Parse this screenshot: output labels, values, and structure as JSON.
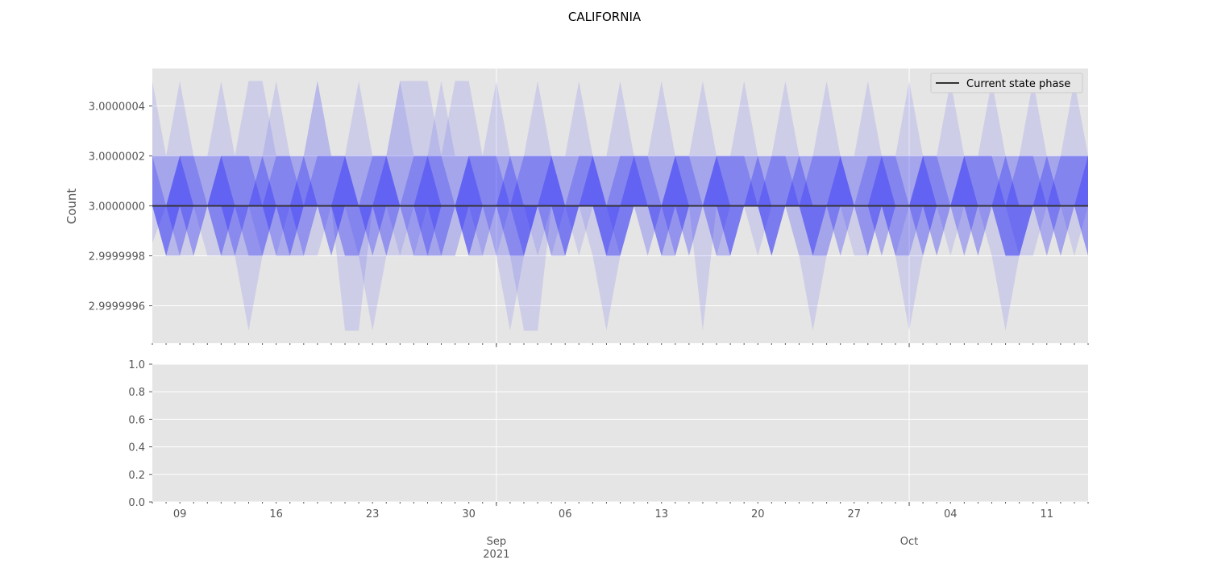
{
  "chart_data": {
    "type": "area",
    "title": "CALIFORNIA",
    "legend": {
      "position": "top-right",
      "entries": [
        "Current state phase"
      ]
    },
    "grid": true,
    "panels": [
      {
        "name": "top",
        "ylabel": "Count",
        "ylim": [
          2.99999945,
          3.00000055
        ],
        "yticks": [
          "2.9999996",
          "2.9999998",
          "3.0000000",
          "3.0000002",
          "3.0000004"
        ],
        "line": {
          "name": "Current state phase",
          "value": 3.0,
          "color": "#333333"
        },
        "bands": [
          {
            "color": "#0000ff",
            "opacity": 0.1,
            "lower": [
              2.99999985,
              3.0,
              2.9999998,
              2.9999998,
              3.0,
              2.9999998,
              2.9999998,
              2.9999998,
              2.9999998,
              3.0,
              3.0,
              2.9999998,
              2.9999998,
              3.0,
              2.9999995,
              2.9999995,
              3.0,
              3.0,
              2.9999998,
              2.9999998,
              3.0,
              2.9999998,
              2.9999998,
              3.0,
              3.0,
              2.9999998,
              2.9999998,
              2.9999995,
              2.9999995,
              3.0,
              2.9999998,
              3.0,
              3.0,
              3.0,
              2.9999998,
              3.0,
              3.0,
              3.0,
              3.0,
              3.0,
              3.0,
              3.0,
              3.0,
              3.0,
              3.0,
              3.0,
              3.0,
              3.0,
              3.0,
              3.0,
              3.0,
              3.0,
              3.0,
              3.0,
              3.0,
              3.0,
              3.0,
              3.0,
              3.0,
              3.0,
              3.0,
              3.0,
              3.0,
              3.0,
              3.0,
              3.0,
              3.0,
              3.0,
              3.0
            ],
            "upper": [
              3.0000005,
              3.0000002,
              3.0000002,
              3.0000002,
              3.0000002,
              3.0000002,
              3.0000002,
              3.0000005,
              3.0000005,
              3.0000002,
              3.0000002,
              3.0000002,
              3.0000005,
              3.0000002,
              3.0000002,
              3.0000002,
              3.0000002,
              3.0000002,
              3.0000005,
              3.0000005,
              3.0000005,
              3.0000002,
              3.0000005,
              3.0000005,
              3.0000002,
              3.0000002,
              3.0000002,
              3.0000002,
              3.0000002,
              3.0000002,
              3.0000002,
              3.0000002,
              3.0000002,
              3.0000002,
              3.0000002,
              3.0000002,
              3.0000002,
              3.0000002,
              3.0000002,
              3.0000002,
              3.0000002,
              3.0000002,
              3.0000002,
              3.0000002,
              3.0000002,
              3.0000002,
              3.0000002,
              3.0000002,
              3.0000002,
              3.0000002,
              3.0000002,
              3.0000002,
              3.0000002,
              3.0000002,
              3.0000002,
              3.0000002,
              3.0000002,
              3.0000002,
              3.0000002,
              3.0000002,
              3.0000002,
              3.0000002,
              3.0000002,
              3.0000002,
              3.0000002,
              3.0000002,
              3.0000002,
              3.0000002,
              3.0000002
            ]
          },
          {
            "color": "#0000ff",
            "opacity": 0.1,
            "lower": [
              3.0,
              2.9999998,
              3.0,
              3.0,
              2.9999998,
              2.9999998,
              3.0,
              3.0,
              2.9999998,
              2.9999998,
              3.0,
              2.9999998,
              3.0,
              3.0,
              2.9999998,
              2.9999998,
              3.0,
              2.9999998,
              2.9999998,
              3.0,
              3.0,
              2.9999998,
              2.9999998,
              3.0,
              2.9999998,
              2.9999998,
              3.0,
              3.0,
              2.9999998,
              3.0,
              3.0,
              2.9999998,
              3.0,
              2.9999998,
              2.9999998,
              3.0,
              3.0,
              2.9999998,
              2.9999998,
              3.0,
              3.0,
              2.9999998,
              3.0,
              3.0,
              2.9999998,
              3.0,
              3.0,
              2.9999998,
              2.9999998,
              3.0,
              3.0,
              2.9999998,
              2.9999998,
              3.0,
              2.9999998,
              3.0,
              3.0,
              2.9999998,
              3.0,
              3.0,
              2.9999998,
              3.0,
              3.0,
              2.9999998,
              2.9999998,
              3.0,
              3.0,
              2.9999998,
              3.0
            ],
            "upper": [
              3.0000002,
              3.0000002,
              3.0000005,
              3.0000002,
              3.0000002,
              3.0000005,
              3.0000002,
              3.0000002,
              3.0000002,
              3.0000005,
              3.0000002,
              3.0000002,
              3.0000005,
              3.0000002,
              3.0000002,
              3.0000005,
              3.0000002,
              3.0000002,
              3.0000005,
              3.0000002,
              3.0000002,
              3.0000005,
              3.0000002,
              3.0000002,
              3.0000002,
              3.0000005,
              3.0000002,
              3.0000002,
              3.0000005,
              3.0000002,
              3.0000002,
              3.0000005,
              3.0000002,
              3.0000002,
              3.0000005,
              3.0000002,
              3.0000002,
              3.0000005,
              3.0000002,
              3.0000002,
              3.0000005,
              3.0000002,
              3.0000002,
              3.0000005,
              3.0000002,
              3.0000002,
              3.0000005,
              3.0000002,
              3.0000002,
              3.0000005,
              3.0000002,
              3.0000002,
              3.0000005,
              3.0000002,
              3.0000002,
              3.0000005,
              3.0000002,
              3.0000002,
              3.0000005,
              3.0000002,
              3.0000002,
              3.0000005,
              3.0000002,
              3.0000002,
              3.0000005,
              3.0000002,
              3.0000002,
              3.0000005,
              3.0000002
            ]
          },
          {
            "color": "#0000ff",
            "opacity": 0.1,
            "lower": [
              3.0,
              3.0,
              2.9999998,
              3.0,
              3.0,
              2.9999998,
              2.9999998,
              2.9999995,
              2.9999998,
              3.0,
              2.9999998,
              3.0,
              3.0,
              2.9999998,
              3.0,
              2.9999998,
              2.9999995,
              2.9999998,
              3.0,
              3.0,
              2.9999998,
              2.9999998,
              3.0,
              2.9999998,
              3.0,
              2.9999998,
              2.9999995,
              2.9999998,
              3.0,
              2.9999998,
              3.0,
              3.0,
              2.9999998,
              2.9999995,
              2.9999998,
              3.0,
              3.0,
              2.9999998,
              2.9999998,
              3.0,
              2.9999995,
              3.0,
              2.9999998,
              3.0,
              3.0,
              2.9999998,
              3.0,
              2.9999998,
              2.9999995,
              2.9999998,
              3.0,
              3.0,
              2.9999998,
              3.0,
              2.9999998,
              2.9999995,
              2.9999998,
              3.0,
              2.9999998,
              3.0,
              3.0,
              2.9999998,
              2.9999995,
              2.9999998,
              3.0,
              3.0,
              2.9999998,
              3.0,
              2.9999998
            ],
            "upper": [
              3.0000002,
              3.0000002,
              3.0000002,
              3.0000002,
              3.0000002,
              3.0000002,
              3.0000002,
              3.0000002,
              3.0000002,
              3.0000002,
              3.0000002,
              3.0000002,
              3.0000002,
              3.0000002,
              3.0000002,
              3.0000002,
              3.0000002,
              3.0000002,
              3.0000002,
              3.0000002,
              3.0000002,
              3.0000002,
              3.0000002,
              3.0000002,
              3.0000002,
              3.0000002,
              3.0000002,
              3.0000002,
              3.0000002,
              3.0000002,
              3.0000002,
              3.0000002,
              3.0000002,
              3.0000002,
              3.0000002,
              3.0000002,
              3.0000002,
              3.0000002,
              3.0000002,
              3.0000002,
              3.0000002,
              3.0000002,
              3.0000002,
              3.0000002,
              3.0000002,
              3.0000002,
              3.0000002,
              3.0000002,
              3.0000002,
              3.0000002,
              3.0000002,
              3.0000002,
              3.0000002,
              3.0000002,
              3.0000002,
              3.0000002,
              3.0000002,
              3.0000002,
              3.0000002,
              3.0000002,
              3.0000002,
              3.0000002,
              3.0000002,
              3.0000002,
              3.0000002,
              3.0000002,
              3.0000002,
              3.0000002,
              3.0000002
            ]
          },
          {
            "color": "#0000ff",
            "opacity": 0.2,
            "lower": [
              3.0,
              2.9999998,
              2.9999998,
              3.0,
              3.0,
              2.9999998,
              3.0,
              2.9999998,
              2.9999998,
              3.0,
              2.9999998,
              2.9999998,
              3.0,
              3.0,
              2.9999998,
              2.9999998,
              3.0,
              2.9999998,
              3.0,
              3.0,
              2.9999998,
              2.9999998,
              3.0,
              2.9999998,
              2.9999998,
              3.0,
              3.0,
              2.9999998,
              3.0,
              2.9999998,
              2.9999998,
              3.0,
              3.0,
              2.9999998,
              3.0,
              3.0,
              2.9999998,
              3.0,
              2.9999998,
              3.0,
              3.0,
              2.9999998,
              2.9999998,
              3.0,
              3.0,
              2.9999998,
              3.0,
              3.0,
              2.9999998,
              2.9999998,
              3.0,
              3.0,
              2.9999998,
              3.0,
              2.9999998,
              2.9999998,
              3.0,
              2.9999998,
              3.0,
              3.0,
              2.9999998,
              3.0,
              2.9999998,
              2.9999998,
              3.0,
              3.0,
              2.9999998,
              3.0,
              3.0
            ],
            "upper": [
              3.0000002,
              3.0,
              3.0000002,
              3.0000002,
              3.0,
              3.0000002,
              3.0000002,
              3.0000002,
              3.0,
              3.0000002,
              3.0000002,
              3.0,
              3.0000002,
              3.0000002,
              3.0000002,
              3.0,
              3.0000002,
              3.0000002,
              3.0,
              3.0000002,
              3.0000002,
              3.0000002,
              3.0,
              3.0000002,
              3.0000002,
              3.0000002,
              3.0,
              3.0000002,
              3.0000002,
              3.0000002,
              3.0,
              3.0000002,
              3.0000002,
              3.0,
              3.0000002,
              3.0000002,
              3.0000002,
              3.0,
              3.0000002,
              3.0000002,
              3.0,
              3.0000002,
              3.0000002,
              3.0000002,
              3.0,
              3.0000002,
              3.0000002,
              3.0,
              3.0000002,
              3.0000002,
              3.0000002,
              3.0,
              3.0000002,
              3.0000002,
              3.0000002,
              3.0,
              3.0000002,
              3.0000002,
              3.0,
              3.0000002,
              3.0000002,
              3.0000002,
              3.0,
              3.0000002,
              3.0000002,
              3.0,
              3.0000002,
              3.0000002,
              3.0000002
            ]
          },
          {
            "color": "#0000ff",
            "opacity": 0.25,
            "lower": [
              3.0,
              2.9999998,
              3.0,
              2.9999998,
              3.0,
              3.0,
              2.9999998,
              3.0,
              3.0,
              2.9999998,
              2.9999998,
              3.0,
              3.0,
              2.9999998,
              3.0,
              3.0,
              2.9999998,
              3.0,
              3.0,
              2.9999998,
              2.9999998,
              3.0,
              3.0,
              2.9999998,
              3.0,
              3.0,
              2.9999998,
              2.9999998,
              3.0,
              3.0,
              2.9999998,
              3.0,
              3.0,
              2.9999998,
              2.9999998,
              3.0,
              3.0,
              2.9999998,
              3.0,
              2.9999998,
              3.0,
              3.0,
              2.9999998,
              3.0,
              3.0,
              2.9999998,
              3.0,
              3.0,
              2.9999998,
              3.0,
              2.9999998,
              3.0,
              3.0,
              2.9999998,
              3.0,
              3.0,
              2.9999998,
              3.0,
              3.0,
              2.9999998,
              3.0,
              3.0,
              2.9999998,
              2.9999998,
              3.0,
              2.9999998,
              3.0,
              3.0,
              2.9999998
            ],
            "upper": [
              3.0,
              3.0,
              3.0000002,
              3.0,
              3.0,
              3.0000002,
              3.0,
              3.0,
              3.0000002,
              3.0,
              3.0,
              3.0000002,
              3.0,
              3.0,
              3.0000002,
              3.0,
              3.0,
              3.0000002,
              3.0,
              3.0,
              3.0000002,
              3.0,
              3.0,
              3.0000002,
              3.0,
              3.0,
              3.0000002,
              3.0,
              3.0,
              3.0000002,
              3.0,
              3.0,
              3.0000002,
              3.0,
              3.0,
              3.0000002,
              3.0,
              3.0,
              3.0000002,
              3.0,
              3.0,
              3.0000002,
              3.0,
              3.0,
              3.0000002,
              3.0,
              3.0,
              3.0000002,
              3.0,
              3.0,
              3.0000002,
              3.0,
              3.0,
              3.0000002,
              3.0,
              3.0,
              3.0000002,
              3.0,
              3.0,
              3.0000002,
              3.0,
              3.0,
              3.0000002,
              3.0,
              3.0,
              3.0000002,
              3.0,
              3.0,
              3.0000002
            ]
          }
        ]
      },
      {
        "name": "bottom",
        "ylim": [
          0.0,
          1.0
        ],
        "yticks": [
          "0.0",
          "0.2",
          "0.4",
          "0.6",
          "0.8",
          "1.0"
        ]
      }
    ],
    "x_range": [
      "2021-08-07",
      "2021-10-14"
    ],
    "x_day_ticks": [
      {
        "date": "2021-08-09",
        "label": "09"
      },
      {
        "date": "2021-08-16",
        "label": "16"
      },
      {
        "date": "2021-08-23",
        "label": "23"
      },
      {
        "date": "2021-08-30",
        "label": "30"
      },
      {
        "date": "2021-09-06",
        "label": "06"
      },
      {
        "date": "2021-09-13",
        "label": "13"
      },
      {
        "date": "2021-09-20",
        "label": "20"
      },
      {
        "date": "2021-09-27",
        "label": "27"
      },
      {
        "date": "2021-10-04",
        "label": "04"
      },
      {
        "date": "2021-10-11",
        "label": "11"
      }
    ],
    "x_month_ticks": [
      {
        "date": "2021-09-01",
        "label": "Sep",
        "sublabel": "2021"
      },
      {
        "date": "2021-10-01",
        "label": "Oct",
        "sublabel": ""
      }
    ]
  }
}
